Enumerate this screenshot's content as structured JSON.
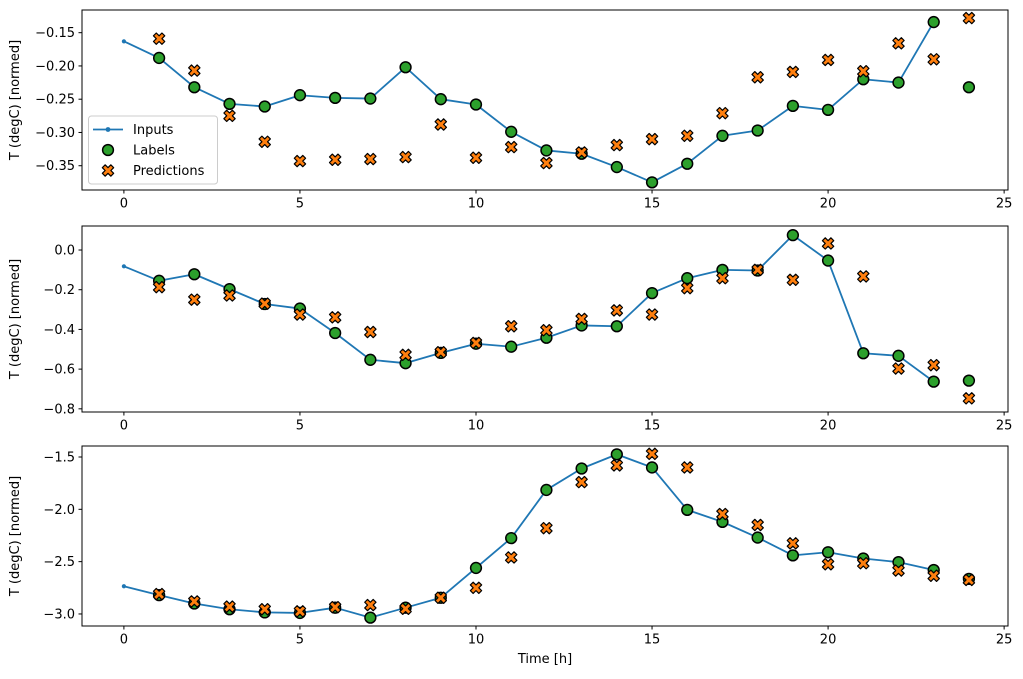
{
  "figure": {
    "xlabel": "Time [h]",
    "colors": {
      "inputs": "#1f77b4",
      "labels": "#2ca02c",
      "predictions": "#ff7f0e",
      "marker_edge": "#000000",
      "spine": "#000000",
      "legend_border": "#cccccc",
      "background": "#ffffff"
    },
    "legend": {
      "position": "upper-left-of-first-subplot",
      "items": [
        {
          "key": "inputs",
          "label": "Inputs"
        },
        {
          "key": "labels",
          "label": "Labels"
        },
        {
          "key": "predictions",
          "label": "Predictions"
        }
      ]
    }
  },
  "chart_data": [
    {
      "type": "line",
      "subplot": 1,
      "title": "",
      "xlabel": "",
      "ylabel": "T (degC) [normed]",
      "grid": false,
      "xlim": [
        -1.19,
        25.11
      ],
      "ylim": [
        -0.3865,
        -0.1159
      ],
      "xticks": [
        {
          "v": 0,
          "label": "0"
        },
        {
          "v": 5,
          "label": "5"
        },
        {
          "v": 10,
          "label": "10"
        },
        {
          "v": 15,
          "label": "15"
        },
        {
          "v": 20,
          "label": "20"
        },
        {
          "v": 25,
          "label": "25"
        }
      ],
      "yticks": [
        {
          "v": -0.15,
          "label": "−0.15"
        },
        {
          "v": -0.2,
          "label": "−0.20"
        },
        {
          "v": -0.25,
          "label": "−0.25"
        },
        {
          "v": -0.3,
          "label": "−0.30"
        },
        {
          "v": -0.35,
          "label": "−0.35"
        }
      ],
      "series": {
        "inputs": {
          "name": "Inputs",
          "type": "line+dot",
          "x": [
            0,
            1,
            2,
            3,
            4,
            5,
            6,
            7,
            8,
            9,
            10,
            11,
            12,
            13,
            14,
            15,
            16,
            17,
            18,
            19,
            20,
            21,
            22,
            23
          ],
          "y": [
            -0.163,
            -0.188,
            -0.232,
            -0.257,
            -0.261,
            -0.244,
            -0.248,
            -0.249,
            -0.202,
            -0.25,
            -0.258,
            -0.299,
            -0.327,
            -0.332,
            -0.352,
            -0.375,
            -0.347,
            -0.305,
            -0.297,
            -0.26,
            -0.266,
            -0.22,
            -0.225,
            -0.134
          ]
        },
        "labels": {
          "name": "Labels",
          "type": "scatter-circle",
          "x": [
            1,
            2,
            3,
            4,
            5,
            6,
            7,
            8,
            9,
            10,
            11,
            12,
            13,
            14,
            15,
            16,
            17,
            18,
            19,
            20,
            21,
            22,
            23,
            24
          ],
          "y": [
            -0.188,
            -0.232,
            -0.257,
            -0.261,
            -0.244,
            -0.248,
            -0.249,
            -0.202,
            -0.25,
            -0.258,
            -0.299,
            -0.327,
            -0.332,
            -0.352,
            -0.375,
            -0.347,
            -0.305,
            -0.297,
            -0.26,
            -0.266,
            -0.22,
            -0.225,
            -0.134,
            -0.232
          ]
        },
        "predictions": {
          "name": "Predictions",
          "type": "scatter-X",
          "x": [
            1,
            2,
            3,
            4,
            5,
            6,
            7,
            8,
            9,
            10,
            11,
            12,
            13,
            14,
            15,
            16,
            17,
            18,
            19,
            20,
            21,
            22,
            23,
            24
          ],
          "y": [
            -0.159,
            -0.207,
            -0.275,
            -0.314,
            -0.343,
            -0.341,
            -0.34,
            -0.337,
            -0.288,
            -0.338,
            -0.322,
            -0.346,
            -0.33,
            -0.319,
            -0.31,
            -0.305,
            -0.271,
            -0.217,
            -0.209,
            -0.191,
            -0.208,
            -0.166,
            -0.19,
            -0.128
          ]
        }
      }
    },
    {
      "type": "line",
      "subplot": 2,
      "title": "",
      "xlabel": "",
      "ylabel": "T (degC) [normed]",
      "grid": false,
      "xlim": [
        -1.19,
        25.11
      ],
      "ylim": [
        -0.816,
        0.121
      ],
      "xticks": [
        {
          "v": 0,
          "label": "0"
        },
        {
          "v": 5,
          "label": "5"
        },
        {
          "v": 10,
          "label": "10"
        },
        {
          "v": 15,
          "label": "15"
        },
        {
          "v": 20,
          "label": "20"
        },
        {
          "v": 25,
          "label": "25"
        }
      ],
      "yticks": [
        {
          "v": 0.0,
          "label": "0.0"
        },
        {
          "v": -0.2,
          "label": "−0.2"
        },
        {
          "v": -0.4,
          "label": "−0.4"
        },
        {
          "v": -0.6,
          "label": "−0.6"
        },
        {
          "v": -0.8,
          "label": "−0.8"
        }
      ],
      "series": {
        "inputs": {
          "name": "Inputs",
          "type": "line+dot",
          "x": [
            0,
            1,
            2,
            3,
            4,
            5,
            6,
            7,
            8,
            9,
            10,
            11,
            12,
            13,
            14,
            15,
            16,
            17,
            18,
            19,
            20,
            21,
            22,
            23
          ],
          "y": [
            -0.082,
            -0.155,
            -0.122,
            -0.197,
            -0.272,
            -0.295,
            -0.418,
            -0.553,
            -0.57,
            -0.518,
            -0.472,
            -0.487,
            -0.442,
            -0.38,
            -0.384,
            -0.217,
            -0.142,
            -0.1,
            -0.103,
            0.075,
            -0.053,
            -0.52,
            -0.533,
            -0.663
          ]
        },
        "labels": {
          "name": "Labels",
          "type": "scatter-circle",
          "x": [
            1,
            2,
            3,
            4,
            5,
            6,
            7,
            8,
            9,
            10,
            11,
            12,
            13,
            14,
            15,
            16,
            17,
            18,
            19,
            20,
            21,
            22,
            23,
            24
          ],
          "y": [
            -0.155,
            -0.122,
            -0.197,
            -0.272,
            -0.295,
            -0.418,
            -0.553,
            -0.57,
            -0.518,
            -0.472,
            -0.487,
            -0.442,
            -0.38,
            -0.384,
            -0.217,
            -0.142,
            -0.1,
            -0.103,
            0.075,
            -0.053,
            -0.52,
            -0.533,
            -0.663,
            -0.658
          ]
        },
        "predictions": {
          "name": "Predictions",
          "type": "scatter-X",
          "x": [
            1,
            2,
            3,
            4,
            5,
            6,
            7,
            8,
            9,
            10,
            11,
            12,
            13,
            14,
            15,
            16,
            17,
            18,
            19,
            20,
            21,
            22,
            23,
            24
          ],
          "y": [
            -0.187,
            -0.25,
            -0.229,
            -0.27,
            -0.325,
            -0.339,
            -0.413,
            -0.528,
            -0.515,
            -0.468,
            -0.384,
            -0.404,
            -0.347,
            -0.304,
            -0.325,
            -0.192,
            -0.142,
            -0.1,
            -0.15,
            0.033,
            -0.133,
            -0.597,
            -0.58,
            -0.747
          ]
        }
      }
    },
    {
      "type": "line",
      "subplot": 3,
      "title": "",
      "xlabel": "Time [h]",
      "ylabel": "T (degC) [normed]",
      "grid": false,
      "xlim": [
        -1.19,
        25.11
      ],
      "ylim": [
        -3.115,
        -1.395
      ],
      "xticks": [
        {
          "v": 0,
          "label": "0"
        },
        {
          "v": 5,
          "label": "5"
        },
        {
          "v": 10,
          "label": "10"
        },
        {
          "v": 15,
          "label": "15"
        },
        {
          "v": 20,
          "label": "20"
        },
        {
          "v": 25,
          "label": "25"
        }
      ],
      "yticks": [
        {
          "v": -1.5,
          "label": "−1.5"
        },
        {
          "v": -2.0,
          "label": "−2.0"
        },
        {
          "v": -2.5,
          "label": "−2.5"
        },
        {
          "v": -3.0,
          "label": "−3.0"
        }
      ],
      "series": {
        "inputs": {
          "name": "Inputs",
          "type": "line+dot",
          "x": [
            0,
            1,
            2,
            3,
            4,
            5,
            6,
            7,
            8,
            9,
            10,
            11,
            12,
            13,
            14,
            15,
            16,
            17,
            18,
            19,
            20,
            21,
            22,
            23
          ],
          "y": [
            -2.735,
            -2.82,
            -2.9,
            -2.955,
            -2.985,
            -2.99,
            -2.94,
            -3.035,
            -2.94,
            -2.845,
            -2.56,
            -2.275,
            -1.815,
            -1.61,
            -1.475,
            -1.6,
            -2.005,
            -2.12,
            -2.27,
            -2.44,
            -2.41,
            -2.47,
            -2.505,
            -2.58
          ]
        },
        "labels": {
          "name": "Labels",
          "type": "scatter-circle",
          "x": [
            1,
            2,
            3,
            4,
            5,
            6,
            7,
            8,
            9,
            10,
            11,
            12,
            13,
            14,
            15,
            16,
            17,
            18,
            19,
            20,
            21,
            22,
            23,
            24
          ],
          "y": [
            -2.82,
            -2.9,
            -2.955,
            -2.985,
            -2.99,
            -2.94,
            -3.035,
            -2.94,
            -2.845,
            -2.56,
            -2.275,
            -1.815,
            -1.61,
            -1.475,
            -1.6,
            -2.005,
            -2.12,
            -2.27,
            -2.44,
            -2.41,
            -2.47,
            -2.505,
            -2.58,
            -2.665
          ]
        },
        "predictions": {
          "name": "Predictions",
          "type": "scatter-X",
          "x": [
            1,
            2,
            3,
            4,
            5,
            6,
            7,
            8,
            9,
            10,
            11,
            12,
            13,
            14,
            15,
            16,
            17,
            18,
            19,
            20,
            21,
            22,
            23,
            24
          ],
          "y": [
            -2.81,
            -2.88,
            -2.93,
            -2.955,
            -2.975,
            -2.935,
            -2.915,
            -2.95,
            -2.845,
            -2.75,
            -2.46,
            -2.18,
            -1.74,
            -1.58,
            -1.47,
            -1.6,
            -2.045,
            -2.15,
            -2.325,
            -2.525,
            -2.515,
            -2.585,
            -2.635,
            -2.675
          ]
        }
      }
    }
  ]
}
